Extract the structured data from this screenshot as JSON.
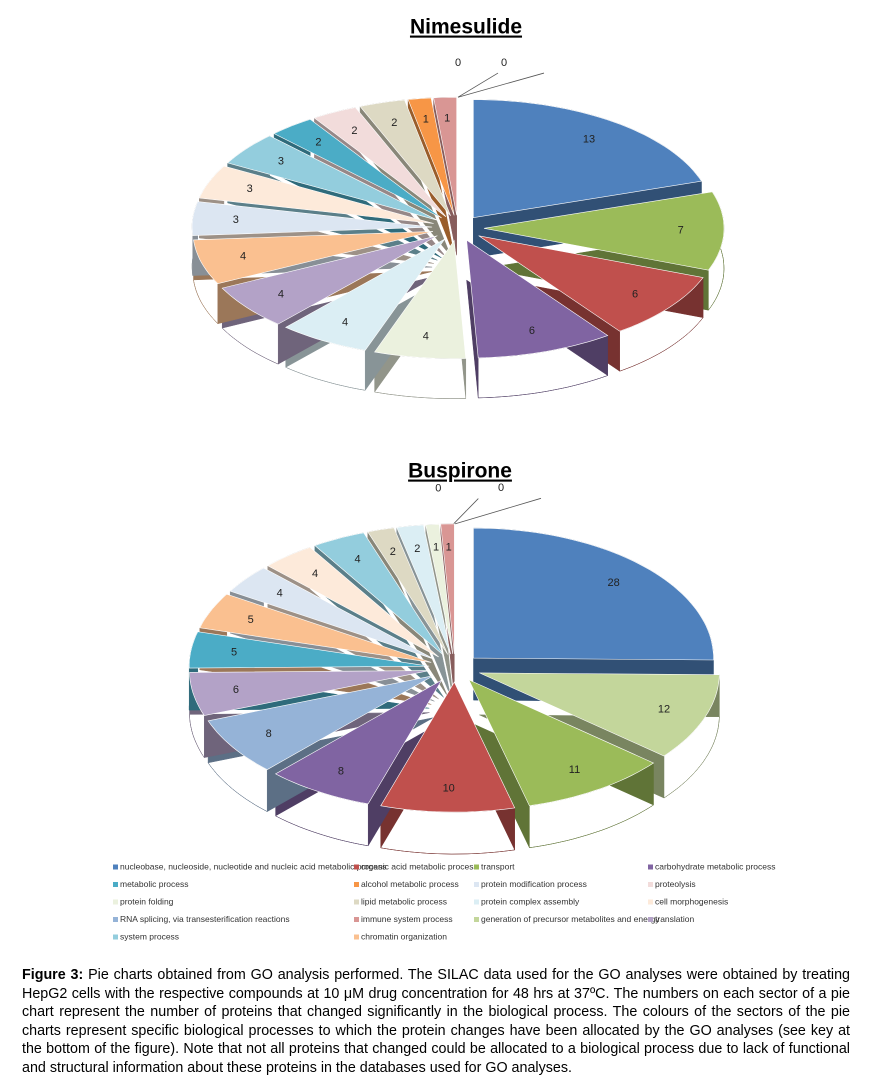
{
  "chart_data": [
    {
      "type": "pie",
      "title": "Nimesulide",
      "values": [
        13,
        7,
        6,
        6,
        4,
        4,
        4,
        4,
        3,
        3,
        3,
        2,
        2,
        2,
        1,
        1,
        0,
        0
      ],
      "colors": [
        "#4F81BD",
        "#9BBB59",
        "#C0504D",
        "#8064A2",
        "#EBF1DE",
        "#DBEEF4",
        "#B3A2C7",
        "#FAC090",
        "#DCE6F2",
        "#FDEADA",
        "#93CDDD",
        "#4BACC6",
        "#F2DCDB",
        "#DDD9C3",
        "#F79646",
        "#D99694",
        "#C3D69B",
        "#95B3D7"
      ]
    },
    {
      "type": "pie",
      "title": "Buspirone",
      "values": [
        28,
        12,
        11,
        10,
        8,
        8,
        6,
        5,
        5,
        4,
        4,
        4,
        2,
        2,
        1,
        0,
        1,
        0
      ],
      "colors": [
        "#4F81BD",
        "#C3D69B",
        "#9BBB59",
        "#C0504D",
        "#8064A2",
        "#95B3D7",
        "#B3A2C7",
        "#4BACC6",
        "#FAC090",
        "#DCE6F2",
        "#FDEADA",
        "#93CDDD",
        "#DDD9C3",
        "#DBEEF4",
        "#EBF1DE",
        "#F79646",
        "#D99694",
        "#F2DCDB"
      ]
    }
  ],
  "legend": [
    {
      "label": "nucleobase, nucleoside, nucleotide and nucleic acid metabolic process",
      "color": "#4F81BD"
    },
    {
      "label": "organic acid metabolic process",
      "color": "#C0504D"
    },
    {
      "label": "transport",
      "color": "#9BBB59"
    },
    {
      "label": "carbohydrate metabolic process",
      "color": "#8064A2"
    },
    {
      "label": "metabolic process",
      "color": "#4BACC6"
    },
    {
      "label": "alcohol metabolic process",
      "color": "#F79646"
    },
    {
      "label": "protein modification process",
      "color": "#DCE6F2"
    },
    {
      "label": "proteolysis",
      "color": "#F2DCDB"
    },
    {
      "label": "protein folding",
      "color": "#EBF1DE"
    },
    {
      "label": "lipid metabolic process",
      "color": "#DDD9C3"
    },
    {
      "label": "protein complex assembly",
      "color": "#DBEEF4"
    },
    {
      "label": "cell morphogenesis",
      "color": "#FDEADA"
    },
    {
      "label": "RNA splicing, via transesterification reactions",
      "color": "#95B3D7"
    },
    {
      "label": "immune system process",
      "color": "#D99694"
    },
    {
      "label": "generation of precursor metabolites and energy",
      "color": "#C3D69B"
    },
    {
      "label": "translation",
      "color": "#B3A2C7"
    },
    {
      "label": "system process",
      "color": "#93CDDD"
    },
    {
      "label": "chromatin organization",
      "color": "#FAC090"
    }
  ],
  "caption": {
    "label": "Figure 3:",
    "text": "Pie charts obtained from GO analysis performed. The SILAC data used for the GO analyses were obtained by treating HepG2 cells with the respective compounds at 10 μM drug concentration for 48 hrs at 37ºC. The numbers on each sector of a pie chart represent the number of proteins that changed significantly in the biological process. The colours of the sectors of the pie charts represent specific biological processes to which the protein changes have been allocated by the GO analyses (see key at the bottom of the figure). Note that not all proteins that changed could be allocated to a biological process due to lack of functional and structural information about these proteins in the databases used for GO analyses."
  }
}
